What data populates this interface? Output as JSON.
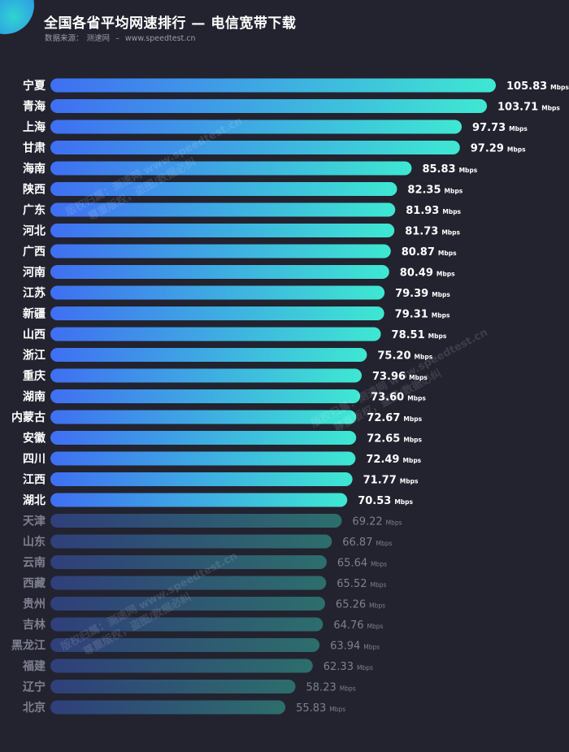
{
  "header": {
    "title": "全国各省平均网速排行 — 电信宽带下载",
    "source_label": "数据来源：",
    "source_name": "测速网",
    "source_sep": "–",
    "source_url": "www.speedtest.cn"
  },
  "watermark": {
    "line1": "版权归属：测速网 www.speedtest.cn",
    "line2": "尊重版权，盗图/数据必纠"
  },
  "colors": {
    "background": "#22232f",
    "bar_start": "#3f6ff2",
    "bar_end": "#3ee8d2",
    "bar_dim_start": "#2f3f7a",
    "bar_dim_end": "#2d6e6c",
    "label_bright": "#ffffff",
    "label_dim": "#7e8091"
  },
  "chart_data": {
    "type": "bar",
    "orientation": "horizontal",
    "title": "全国各省平均网速排行 — 电信宽带下载",
    "unit": "Mbps",
    "highlight_count": 21,
    "categories": [
      "宁夏",
      "青海",
      "上海",
      "甘肃",
      "海南",
      "陕西",
      "广东",
      "河北",
      "广西",
      "河南",
      "江苏",
      "新疆",
      "山西",
      "浙江",
      "重庆",
      "湖南",
      "内蒙古",
      "安徽",
      "四川",
      "江西",
      "湖北",
      "天津",
      "山东",
      "云南",
      "西藏",
      "贵州",
      "吉林",
      "黑龙江",
      "福建",
      "辽宁",
      "北京"
    ],
    "values": [
      105.83,
      103.71,
      97.73,
      97.29,
      85.83,
      82.35,
      81.93,
      81.73,
      80.87,
      80.49,
      79.39,
      79.31,
      78.51,
      75.2,
      73.96,
      73.6,
      72.67,
      72.65,
      72.49,
      71.77,
      70.53,
      69.22,
      66.87,
      65.64,
      65.52,
      65.26,
      64.76,
      63.94,
      62.33,
      58.23,
      55.83
    ],
    "value_labels": [
      "105.83",
      "103.71",
      "97.73",
      "97.29",
      "85.83",
      "82.35",
      "81.93",
      "81.73",
      "80.87",
      "80.49",
      "79.39",
      "79.31",
      "78.51",
      "75.20",
      "73.96",
      "73.60",
      "72.67",
      "72.65",
      "72.49",
      "71.77",
      "70.53",
      "69.22",
      "66.87",
      "65.64",
      "65.52",
      "65.26",
      "64.76",
      "63.94",
      "62.33",
      "58.23",
      "55.83"
    ],
    "xlabel": "",
    "ylabel": "",
    "grid": false
  }
}
